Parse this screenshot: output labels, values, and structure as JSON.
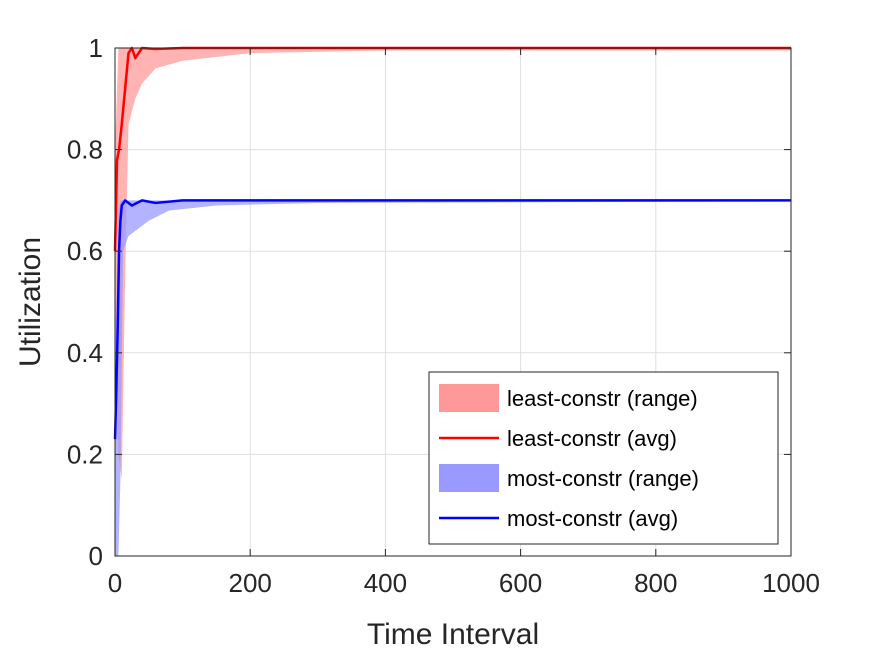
{
  "chart_data": {
    "type": "line",
    "title": "",
    "xlabel": "Time Interval",
    "ylabel": "Utilization",
    "xlim": [
      0,
      1000
    ],
    "ylim": [
      0,
      1
    ],
    "xticks": [
      0,
      200,
      400,
      600,
      800,
      1000
    ],
    "xtick_labels": [
      "0",
      "200",
      "400",
      "600",
      "800",
      "1000"
    ],
    "yticks": [
      0,
      0.2,
      0.4,
      0.6,
      0.8,
      1
    ],
    "ytick_labels": [
      "0",
      "0.2",
      "0.4",
      "0.6",
      "0.8",
      "1"
    ],
    "grid": true,
    "legend_position": "bottom-right",
    "series": [
      {
        "name": "least-constr (range)",
        "kind": "band",
        "color": "#ff9999",
        "x": [
          0,
          5,
          10,
          15,
          20,
          30,
          40,
          60,
          100,
          200,
          400,
          1000
        ],
        "lower": [
          0.45,
          0.2,
          0.15,
          0.55,
          0.85,
          0.9,
          0.93,
          0.96,
          0.975,
          0.99,
          0.995,
          0.995
        ],
        "upper": [
          0.8,
          1.0,
          1.0,
          1.0,
          1.0,
          1.0,
          1.0,
          1.0,
          1.0,
          1.0,
          1.0,
          1.0
        ]
      },
      {
        "name": "least-constr (avg)",
        "kind": "line",
        "color": "#ff0000",
        "x": [
          0,
          3,
          6,
          10,
          15,
          20,
          25,
          30,
          40,
          60,
          100,
          1000
        ],
        "values": [
          0.6,
          0.78,
          0.8,
          0.85,
          0.92,
          0.99,
          1.0,
          0.98,
          1.0,
          0.998,
          1.0,
          1.0
        ]
      },
      {
        "name": "most-constr (range)",
        "kind": "band",
        "color": "#9999ff",
        "x": [
          0,
          5,
          8,
          12,
          20,
          30,
          50,
          80,
          150,
          300,
          1000
        ],
        "lower": [
          0.0,
          0.0,
          0.15,
          0.6,
          0.63,
          0.64,
          0.66,
          0.68,
          0.69,
          0.695,
          0.698
        ],
        "upper": [
          0.35,
          0.68,
          0.7,
          0.7,
          0.7,
          0.7,
          0.7,
          0.7,
          0.7,
          0.7,
          0.7
        ]
      },
      {
        "name": "most-constr (avg)",
        "kind": "line",
        "color": "#0000ff",
        "x": [
          0,
          2,
          4,
          6,
          8,
          10,
          15,
          25,
          40,
          60,
          100,
          1000
        ],
        "values": [
          0.23,
          0.33,
          0.45,
          0.6,
          0.66,
          0.69,
          0.7,
          0.69,
          0.7,
          0.695,
          0.7,
          0.7
        ]
      }
    ]
  }
}
